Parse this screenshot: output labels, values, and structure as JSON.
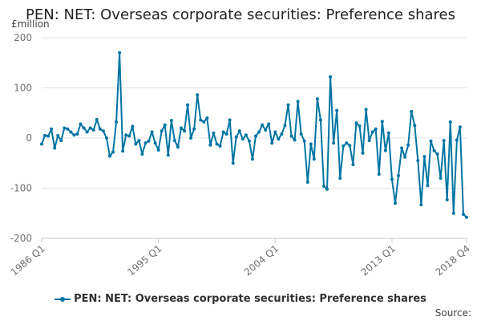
{
  "chart_data": {
    "type": "line",
    "title": "PEN: NET: Overseas corporate securities: Preference shares",
    "y_unit": "£million",
    "ylim": [
      -200,
      200
    ],
    "y_ticks": [
      "200",
      "100",
      "0",
      "-100",
      "-200"
    ],
    "y_tick_values": [
      200,
      100,
      0,
      -100,
      -200
    ],
    "x_ticks": [
      "1986 Q1",
      "1995 Q1",
      "2004 Q1",
      "2013 Q1",
      "2018 Q4"
    ],
    "x_tick_indices": [
      0,
      36,
      72,
      108,
      131
    ],
    "grid": true,
    "legend_position": "bottom",
    "color": "#0075a3",
    "series": [
      {
        "name": "PEN: NET: Overseas corporate securities: Preference shares",
        "values": [
          -12,
          5,
          4,
          18,
          -20,
          5,
          -5,
          20,
          18,
          12,
          6,
          8,
          28,
          20,
          12,
          20,
          16,
          37,
          18,
          14,
          0,
          -36,
          -28,
          32,
          170,
          -26,
          6,
          4,
          23,
          -12,
          -5,
          -32,
          -10,
          -6,
          12,
          -10,
          -24,
          14,
          26,
          -34,
          35,
          -5,
          -18,
          20,
          14,
          66,
          0,
          18,
          86,
          36,
          32,
          40,
          -14,
          10,
          -12,
          -16,
          12,
          8,
          36,
          -50,
          2,
          14,
          -2,
          6,
          -6,
          -42,
          4,
          12,
          26,
          16,
          28,
          -10,
          12,
          -2,
          8,
          25,
          66,
          4,
          -4,
          73,
          8,
          -6,
          -88,
          -12,
          -42,
          78,
          36,
          -96,
          -102,
          122,
          -10,
          55,
          -80,
          -16,
          -10,
          -15,
          -53,
          30,
          24,
          -30,
          57,
          -5,
          12,
          18,
          -72,
          33,
          -25,
          10,
          -82,
          -130,
          -75,
          -20,
          -38,
          -14,
          53,
          25,
          -45,
          -133,
          -37,
          -95,
          -6,
          -25,
          -32,
          -80,
          -5,
          -123,
          32,
          -150,
          -4,
          22,
          -152,
          -158
        ]
      }
    ],
    "legend": [
      "PEN: NET: Overseas corporate securities: Preference shares"
    ]
  },
  "footer": {
    "source_label": "Source:"
  }
}
